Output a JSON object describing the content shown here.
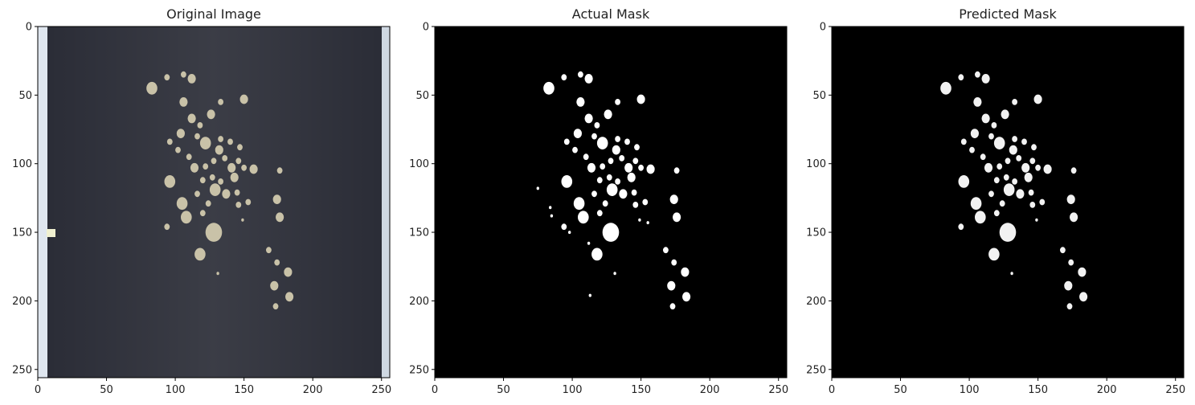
{
  "figure": {
    "background": "#ffffff"
  },
  "chart_data": [
    {
      "type": "image",
      "title": "Original Image",
      "xlim": [
        0,
        256
      ],
      "ylim": [
        256,
        0
      ],
      "x_ticks": [
        0,
        50,
        100,
        150,
        200,
        250
      ],
      "y_ticks": [
        0,
        50,
        100,
        150,
        200,
        250
      ],
      "background_color": "#2a2c36",
      "particle_color": "#c9c2a8",
      "particles": [
        {
          "x": 83,
          "y": 45,
          "r": 4
        },
        {
          "x": 94,
          "y": 37,
          "r": 2
        },
        {
          "x": 106,
          "y": 35,
          "r": 2
        },
        {
          "x": 112,
          "y": 38,
          "r": 3
        },
        {
          "x": 106,
          "y": 55,
          "r": 3
        },
        {
          "x": 133,
          "y": 55,
          "r": 2
        },
        {
          "x": 150,
          "y": 53,
          "r": 3
        },
        {
          "x": 112,
          "y": 67,
          "r": 3
        },
        {
          "x": 118,
          "y": 72,
          "r": 2
        },
        {
          "x": 126,
          "y": 64,
          "r": 3
        },
        {
          "x": 104,
          "y": 78,
          "r": 3
        },
        {
          "x": 116,
          "y": 80,
          "r": 2
        },
        {
          "x": 122,
          "y": 85,
          "r": 4
        },
        {
          "x": 133,
          "y": 82,
          "r": 2
        },
        {
          "x": 140,
          "y": 84,
          "r": 2
        },
        {
          "x": 132,
          "y": 90,
          "r": 3
        },
        {
          "x": 147,
          "y": 88,
          "r": 2
        },
        {
          "x": 96,
          "y": 84,
          "r": 2
        },
        {
          "x": 102,
          "y": 90,
          "r": 2
        },
        {
          "x": 110,
          "y": 95,
          "r": 2
        },
        {
          "x": 114,
          "y": 103,
          "r": 3
        },
        {
          "x": 122,
          "y": 102,
          "r": 2
        },
        {
          "x": 128,
          "y": 98,
          "r": 2
        },
        {
          "x": 136,
          "y": 96,
          "r": 2
        },
        {
          "x": 146,
          "y": 98,
          "r": 2
        },
        {
          "x": 141,
          "y": 103,
          "r": 3
        },
        {
          "x": 150,
          "y": 103,
          "r": 2
        },
        {
          "x": 157,
          "y": 104,
          "r": 3
        },
        {
          "x": 176,
          "y": 105,
          "r": 2
        },
        {
          "x": 96,
          "y": 113,
          "r": 4
        },
        {
          "x": 120,
          "y": 112,
          "r": 2
        },
        {
          "x": 127,
          "y": 110,
          "r": 2
        },
        {
          "x": 133,
          "y": 113,
          "r": 2
        },
        {
          "x": 143,
          "y": 110,
          "r": 3
        },
        {
          "x": 129,
          "y": 119,
          "r": 4
        },
        {
          "x": 137,
          "y": 122,
          "r": 3
        },
        {
          "x": 145,
          "y": 121,
          "r": 2
        },
        {
          "x": 116,
          "y": 122,
          "r": 2
        },
        {
          "x": 105,
          "y": 129,
          "r": 4
        },
        {
          "x": 124,
          "y": 129,
          "r": 2
        },
        {
          "x": 146,
          "y": 130,
          "r": 2
        },
        {
          "x": 153,
          "y": 128,
          "r": 2
        },
        {
          "x": 174,
          "y": 126,
          "r": 3
        },
        {
          "x": 108,
          "y": 139,
          "r": 4
        },
        {
          "x": 120,
          "y": 136,
          "r": 2
        },
        {
          "x": 149,
          "y": 141,
          "r": 1
        },
        {
          "x": 176,
          "y": 139,
          "r": 3
        },
        {
          "x": 94,
          "y": 146,
          "r": 2
        },
        {
          "x": 128,
          "y": 150,
          "r": 6
        },
        {
          "x": 118,
          "y": 166,
          "r": 4
        },
        {
          "x": 131,
          "y": 180,
          "r": 1
        },
        {
          "x": 168,
          "y": 163,
          "r": 2
        },
        {
          "x": 174,
          "y": 172,
          "r": 2
        },
        {
          "x": 182,
          "y": 179,
          "r": 3
        },
        {
          "x": 172,
          "y": 189,
          "r": 3
        },
        {
          "x": 183,
          "y": 197,
          "r": 3
        },
        {
          "x": 173,
          "y": 204,
          "r": 2
        }
      ]
    },
    {
      "type": "image",
      "title": "Actual Mask",
      "xlim": [
        0,
        256
      ],
      "ylim": [
        256,
        0
      ],
      "x_ticks": [
        0,
        50,
        100,
        150,
        200,
        250
      ],
      "y_ticks": [
        0,
        50,
        100,
        150,
        200,
        250
      ],
      "background_color": "#000000",
      "particle_color": "#ffffff",
      "particles": [
        {
          "x": 83,
          "y": 45,
          "r": 4
        },
        {
          "x": 94,
          "y": 37,
          "r": 2
        },
        {
          "x": 106,
          "y": 35,
          "r": 2
        },
        {
          "x": 112,
          "y": 38,
          "r": 3
        },
        {
          "x": 106,
          "y": 55,
          "r": 3
        },
        {
          "x": 133,
          "y": 55,
          "r": 2
        },
        {
          "x": 150,
          "y": 53,
          "r": 3
        },
        {
          "x": 112,
          "y": 67,
          "r": 3
        },
        {
          "x": 118,
          "y": 72,
          "r": 2
        },
        {
          "x": 126,
          "y": 64,
          "r": 3
        },
        {
          "x": 104,
          "y": 78,
          "r": 3
        },
        {
          "x": 116,
          "y": 80,
          "r": 2
        },
        {
          "x": 122,
          "y": 85,
          "r": 4
        },
        {
          "x": 133,
          "y": 82,
          "r": 2
        },
        {
          "x": 140,
          "y": 84,
          "r": 2
        },
        {
          "x": 132,
          "y": 90,
          "r": 3
        },
        {
          "x": 147,
          "y": 88,
          "r": 2
        },
        {
          "x": 96,
          "y": 84,
          "r": 2
        },
        {
          "x": 102,
          "y": 90,
          "r": 2
        },
        {
          "x": 110,
          "y": 95,
          "r": 2
        },
        {
          "x": 114,
          "y": 103,
          "r": 3
        },
        {
          "x": 122,
          "y": 102,
          "r": 2
        },
        {
          "x": 128,
          "y": 98,
          "r": 2
        },
        {
          "x": 136,
          "y": 96,
          "r": 2
        },
        {
          "x": 146,
          "y": 98,
          "r": 2
        },
        {
          "x": 141,
          "y": 103,
          "r": 3
        },
        {
          "x": 150,
          "y": 103,
          "r": 2
        },
        {
          "x": 157,
          "y": 104,
          "r": 3
        },
        {
          "x": 176,
          "y": 105,
          "r": 2
        },
        {
          "x": 96,
          "y": 113,
          "r": 4
        },
        {
          "x": 120,
          "y": 112,
          "r": 2
        },
        {
          "x": 127,
          "y": 110,
          "r": 2
        },
        {
          "x": 133,
          "y": 113,
          "r": 2
        },
        {
          "x": 143,
          "y": 110,
          "r": 3
        },
        {
          "x": 129,
          "y": 119,
          "r": 4
        },
        {
          "x": 137,
          "y": 122,
          "r": 3
        },
        {
          "x": 145,
          "y": 121,
          "r": 2
        },
        {
          "x": 116,
          "y": 122,
          "r": 2
        },
        {
          "x": 105,
          "y": 129,
          "r": 4
        },
        {
          "x": 124,
          "y": 129,
          "r": 2
        },
        {
          "x": 146,
          "y": 130,
          "r": 2
        },
        {
          "x": 153,
          "y": 128,
          "r": 2
        },
        {
          "x": 174,
          "y": 126,
          "r": 3
        },
        {
          "x": 108,
          "y": 139,
          "r": 4
        },
        {
          "x": 120,
          "y": 136,
          "r": 2
        },
        {
          "x": 149,
          "y": 141,
          "r": 1
        },
        {
          "x": 176,
          "y": 139,
          "r": 3
        },
        {
          "x": 94,
          "y": 146,
          "r": 2
        },
        {
          "x": 128,
          "y": 150,
          "r": 6
        },
        {
          "x": 118,
          "y": 166,
          "r": 4
        },
        {
          "x": 131,
          "y": 180,
          "r": 1
        },
        {
          "x": 168,
          "y": 163,
          "r": 2
        },
        {
          "x": 174,
          "y": 172,
          "r": 2
        },
        {
          "x": 182,
          "y": 179,
          "r": 3
        },
        {
          "x": 172,
          "y": 189,
          "r": 3
        },
        {
          "x": 183,
          "y": 197,
          "r": 3
        },
        {
          "x": 173,
          "y": 204,
          "r": 2
        },
        {
          "x": 75,
          "y": 118,
          "r": 1
        },
        {
          "x": 85,
          "y": 138,
          "r": 1
        },
        {
          "x": 84,
          "y": 132,
          "r": 1
        },
        {
          "x": 98,
          "y": 150,
          "r": 1
        },
        {
          "x": 112,
          "y": 158,
          "r": 1
        },
        {
          "x": 113,
          "y": 196,
          "r": 1
        },
        {
          "x": 155,
          "y": 143,
          "r": 1
        }
      ]
    },
    {
      "type": "image",
      "title": "Predicted Mask",
      "xlim": [
        0,
        256
      ],
      "ylim": [
        256,
        0
      ],
      "x_ticks": [
        0,
        50,
        100,
        150,
        200,
        250
      ],
      "y_ticks": [
        0,
        50,
        100,
        150,
        200,
        250
      ],
      "background_color": "#000000",
      "particle_color": "#f2f2f2",
      "particles": [
        {
          "x": 83,
          "y": 45,
          "r": 4
        },
        {
          "x": 94,
          "y": 37,
          "r": 2
        },
        {
          "x": 106,
          "y": 35,
          "r": 2
        },
        {
          "x": 112,
          "y": 38,
          "r": 3
        },
        {
          "x": 106,
          "y": 55,
          "r": 3
        },
        {
          "x": 133,
          "y": 55,
          "r": 2
        },
        {
          "x": 150,
          "y": 53,
          "r": 3
        },
        {
          "x": 112,
          "y": 67,
          "r": 3
        },
        {
          "x": 118,
          "y": 72,
          "r": 2
        },
        {
          "x": 126,
          "y": 64,
          "r": 3
        },
        {
          "x": 104,
          "y": 78,
          "r": 3
        },
        {
          "x": 116,
          "y": 80,
          "r": 2
        },
        {
          "x": 122,
          "y": 85,
          "r": 4
        },
        {
          "x": 133,
          "y": 82,
          "r": 2
        },
        {
          "x": 140,
          "y": 84,
          "r": 2
        },
        {
          "x": 132,
          "y": 90,
          "r": 3
        },
        {
          "x": 147,
          "y": 88,
          "r": 2
        },
        {
          "x": 96,
          "y": 84,
          "r": 2
        },
        {
          "x": 102,
          "y": 90,
          "r": 2
        },
        {
          "x": 110,
          "y": 95,
          "r": 2
        },
        {
          "x": 114,
          "y": 103,
          "r": 3
        },
        {
          "x": 122,
          "y": 102,
          "r": 2
        },
        {
          "x": 128,
          "y": 98,
          "r": 2
        },
        {
          "x": 136,
          "y": 96,
          "r": 2
        },
        {
          "x": 146,
          "y": 98,
          "r": 2
        },
        {
          "x": 141,
          "y": 103,
          "r": 3
        },
        {
          "x": 150,
          "y": 103,
          "r": 2
        },
        {
          "x": 157,
          "y": 104,
          "r": 3
        },
        {
          "x": 176,
          "y": 105,
          "r": 2
        },
        {
          "x": 96,
          "y": 113,
          "r": 4
        },
        {
          "x": 120,
          "y": 112,
          "r": 2
        },
        {
          "x": 127,
          "y": 110,
          "r": 2
        },
        {
          "x": 133,
          "y": 113,
          "r": 2
        },
        {
          "x": 143,
          "y": 110,
          "r": 3
        },
        {
          "x": 129,
          "y": 119,
          "r": 4
        },
        {
          "x": 137,
          "y": 122,
          "r": 3
        },
        {
          "x": 145,
          "y": 121,
          "r": 2
        },
        {
          "x": 116,
          "y": 122,
          "r": 2
        },
        {
          "x": 105,
          "y": 129,
          "r": 4
        },
        {
          "x": 124,
          "y": 129,
          "r": 2
        },
        {
          "x": 146,
          "y": 130,
          "r": 2
        },
        {
          "x": 153,
          "y": 128,
          "r": 2
        },
        {
          "x": 174,
          "y": 126,
          "r": 3
        },
        {
          "x": 108,
          "y": 139,
          "r": 4
        },
        {
          "x": 120,
          "y": 136,
          "r": 2
        },
        {
          "x": 149,
          "y": 141,
          "r": 1
        },
        {
          "x": 176,
          "y": 139,
          "r": 3
        },
        {
          "x": 94,
          "y": 146,
          "r": 2
        },
        {
          "x": 128,
          "y": 150,
          "r": 6
        },
        {
          "x": 118,
          "y": 166,
          "r": 4
        },
        {
          "x": 131,
          "y": 180,
          "r": 1
        },
        {
          "x": 168,
          "y": 163,
          "r": 2
        },
        {
          "x": 174,
          "y": 172,
          "r": 2
        },
        {
          "x": 182,
          "y": 179,
          "r": 3
        },
        {
          "x": 172,
          "y": 189,
          "r": 3
        },
        {
          "x": 183,
          "y": 197,
          "r": 3
        },
        {
          "x": 173,
          "y": 204,
          "r": 2
        }
      ]
    }
  ]
}
